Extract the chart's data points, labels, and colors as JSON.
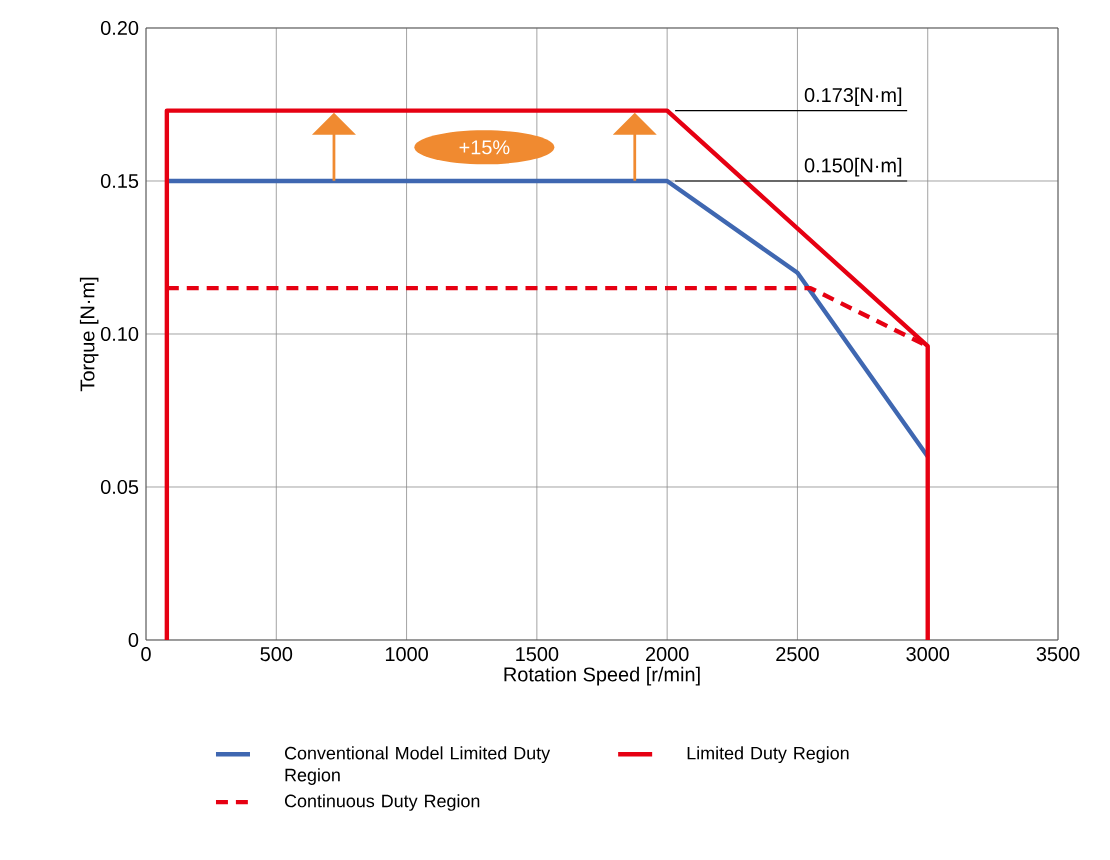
{
  "chart_data": {
    "type": "line",
    "xlabel": "Rotation Speed [r/min]",
    "ylabel": "Torque [N·m]",
    "xlim": [
      0,
      3500
    ],
    "ylim": [
      0,
      0.2
    ],
    "xticks": [
      0,
      500,
      1000,
      1500,
      2000,
      2500,
      3000,
      3500
    ],
    "yticks": [
      0,
      0.05,
      {
        "value": 0.1,
        "label": "0.10"
      },
      0.15,
      {
        "value": 0.2,
        "label": "0.20"
      }
    ],
    "grid": true,
    "legend": "bottom",
    "series": [
      {
        "name": "Conventional Model Limited Duty Region",
        "color": "#3f67b1",
        "line_style": "solid",
        "x": [
          80,
          2000,
          2500,
          3000
        ],
        "values": [
          0.15,
          0.15,
          0.12,
          0.06
        ]
      },
      {
        "name": "Limited Duty Region",
        "color": "#e60012",
        "line_style": "solid",
        "x": [
          80,
          80,
          2000,
          3000,
          3000
        ],
        "values": [
          0,
          0.173,
          0.173,
          0.096,
          0
        ]
      },
      {
        "name": "Continuous Duty Region",
        "color": "#e60012",
        "line_style": "dashed",
        "x": [
          80,
          2550,
          3000
        ],
        "values": [
          0.115,
          0.115,
          0.096
        ]
      }
    ],
    "annotations": [
      {
        "text": "0.173[N·m]",
        "x": 2000,
        "y": 0.173
      },
      {
        "text": "0.150[N·m]",
        "x": 2000,
        "y": 0.15
      },
      "+15%"
    ]
  }
}
